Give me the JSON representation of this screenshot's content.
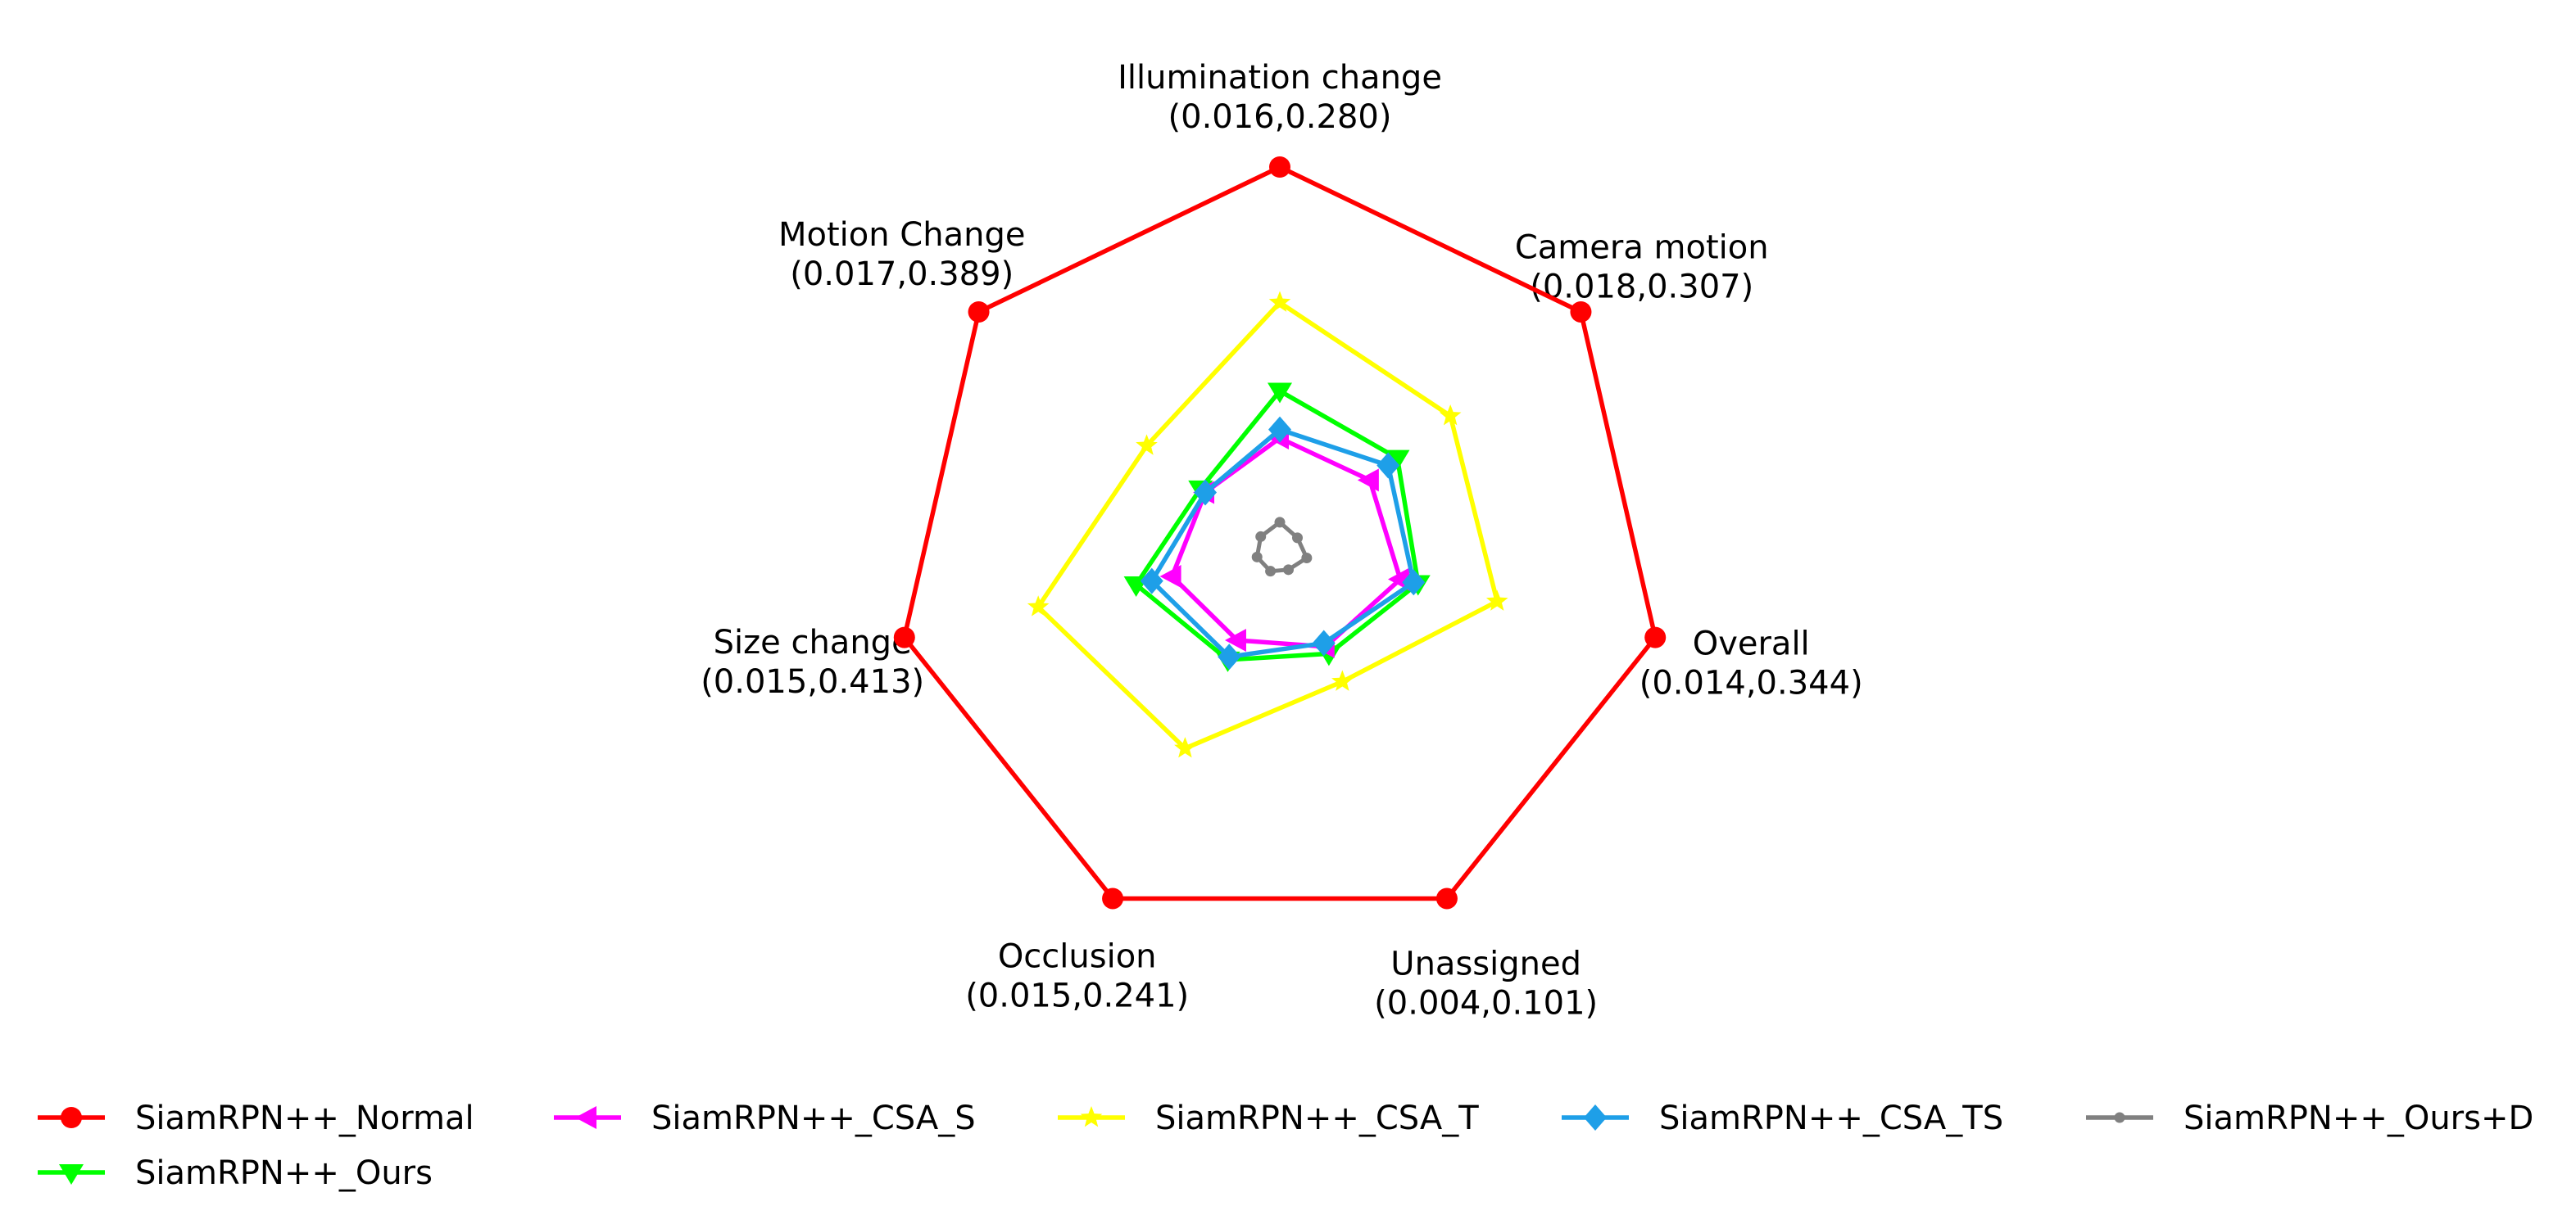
{
  "chart_data": {
    "type": "radar",
    "title": "",
    "axes": [
      {
        "name": "Illumination change",
        "range_label": "(0.016,0.280)",
        "min": 0.016,
        "max": 0.28
      },
      {
        "name": "Camera motion",
        "range_label": "(0.018,0.307)",
        "min": 0.018,
        "max": 0.307
      },
      {
        "name": "Overall",
        "range_label": "(0.014,0.344)",
        "min": 0.014,
        "max": 0.344
      },
      {
        "name": "Unassigned",
        "range_label": "(0.004,0.101)",
        "min": 0.004,
        "max": 0.101
      },
      {
        "name": "Occlusion",
        "range_label": "(0.015,0.241)",
        "min": 0.015,
        "max": 0.241
      },
      {
        "name": "Size change",
        "range_label": "(0.015,0.413)",
        "min": 0.015,
        "max": 0.413
      },
      {
        "name": "Motion Change",
        "range_label": "(0.017,0.389)",
        "min": 0.017,
        "max": 0.389
      }
    ],
    "series": [
      {
        "name": "SiamRPN++_Normal",
        "color": "#ff0000",
        "marker": "circle",
        "values": [
          0.28,
          0.307,
          0.344,
          0.101,
          0.241,
          0.413,
          0.389
        ]
      },
      {
        "name": "SiamRPN++_Ours",
        "color": "#00ff00",
        "marker": "triangle-down",
        "values": [
          0.123,
          0.127,
          0.131,
          0.031,
          0.082,
          0.162,
          0.109
        ]
      },
      {
        "name": "SiamRPN++_CSA_S",
        "color": "#ff00ff",
        "marker": "triangle-left",
        "values": [
          0.09,
          0.1,
          0.115,
          0.029,
          0.069,
          0.123,
          0.103
        ]
      },
      {
        "name": "SiamRPN++_CSA_T",
        "color": "#ffff00",
        "marker": "star",
        "values": [
          0.185,
          0.179,
          0.202,
          0.039,
          0.141,
          0.268,
          0.177
        ]
      },
      {
        "name": "SiamRPN++_CSA_TS",
        "color": "#1e9fe8",
        "marker": "diamond",
        "values": [
          0.096,
          0.118,
          0.127,
          0.028,
          0.08,
          0.145,
          0.103
        ]
      },
      {
        "name": "SiamRPN++_Ours+D",
        "color": "#808080",
        "marker": "point",
        "values": [
          0.031,
          0.029,
          0.031,
          0.007,
          0.023,
          0.031,
          0.033
        ]
      }
    ],
    "legend": {
      "placement": "bottom",
      "columns": 5
    },
    "grid": false
  }
}
